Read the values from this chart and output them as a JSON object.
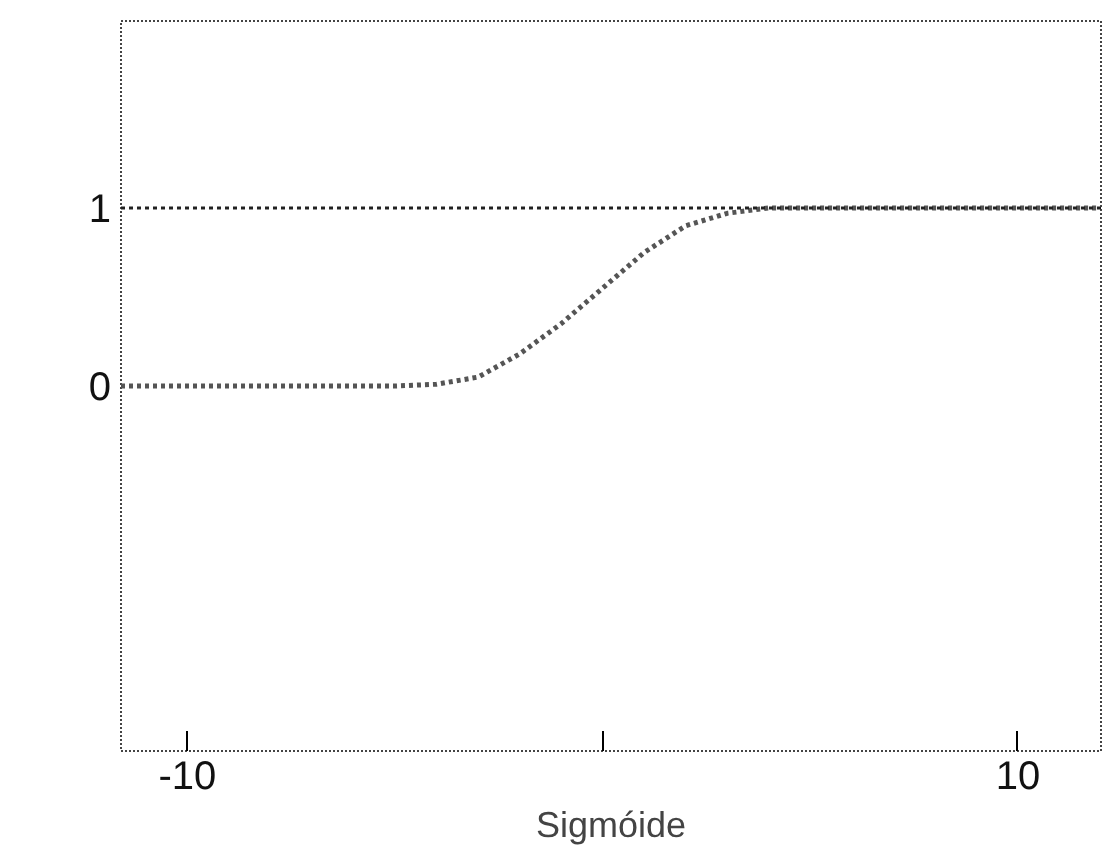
{
  "chart_data": {
    "type": "line",
    "xlabel": "Sigmóide",
    "x": [
      -11.6,
      -5,
      -4,
      -3,
      -2,
      -1,
      0,
      1,
      2,
      3,
      4,
      5,
      12
    ],
    "series": [
      {
        "color": "#555555",
        "values": [
          0,
          0,
          0.01,
          0.05,
          0.18,
          0.35,
          0.55,
          0.75,
          0.9,
          0.97,
          1,
          1,
          1
        ]
      }
    ],
    "line_style": "dotted",
    "marker": "none",
    "grid": false,
    "xlim": [
      -11.6,
      12
    ],
    "ylim": [
      -2.05,
      2.05
    ],
    "xticks": [
      -10,
      {
        "value": 0,
        "label": null
      },
      10
    ],
    "yticks": [
      0,
      1
    ],
    "ref_lines": [
      {
        "axis": "y",
        "value": 1,
        "color": "#222222",
        "line_style": "dotted"
      }
    ]
  }
}
